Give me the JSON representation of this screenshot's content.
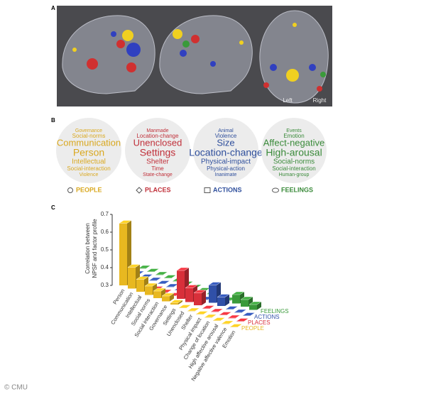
{
  "panel_labels": [
    "A",
    "B",
    "C"
  ],
  "panel_a": {
    "left": "Left",
    "right": "Right"
  },
  "panel_b": {
    "clouds": [
      {
        "name": "PEOPLE",
        "color": "#d9a820",
        "words": [
          "Governance",
          "Social-norms",
          "Communication",
          "Person",
          "Intellectual",
          "Social-interaction",
          "Violence"
        ]
      },
      {
        "name": "PLACES",
        "color": "#c0303a",
        "words": [
          "Manmade",
          "Location-change",
          "Unenclosed",
          "Settings",
          "Shelter",
          "Time",
          "State-change"
        ]
      },
      {
        "name": "ACTIONS",
        "color": "#2f4f9c",
        "words": [
          "Animal",
          "Violence",
          "Size",
          "Location-change",
          "Physical-impact",
          "Physical-action",
          "Inanimate"
        ]
      },
      {
        "name": "FEELINGS",
        "color": "#3a8a3a",
        "words": [
          "Events",
          "Emotion",
          "Affect-negative",
          "High-arousal",
          "Social-norms",
          "Social-interaction",
          "Human-group"
        ]
      }
    ]
  },
  "chart_data": {
    "type": "bar3d",
    "ylabel": [
      "Correlation between",
      "NPSF and factor profile"
    ],
    "ylim": [
      0.3,
      0.7
    ],
    "yticks": [
      0.3,
      0.4,
      0.5,
      0.6,
      0.7
    ],
    "categories": [
      "Person",
      "Communication",
      "Intellectual",
      "Social norms",
      "Social interaction",
      "Governance",
      "Settings",
      "Unenclosed",
      "Shelter",
      "Physical impact",
      "Change of location",
      "High affective arousal",
      "Negative affective valence",
      "Emotion"
    ],
    "series": [
      {
        "name": "PEOPLE",
        "color": "#e8b820",
        "values": [
          0.65,
          0.42,
          0.37,
          0.35,
          0.34,
          0.33,
          0.31,
          0.3,
          0.3,
          0.3,
          0.3,
          0.3,
          0.3,
          0.3
        ]
      },
      {
        "name": "PLACES",
        "color": "#d8303a",
        "values": [
          0.3,
          0.3,
          0.3,
          0.3,
          0.3,
          0.3,
          0.46,
          0.38,
          0.37,
          0.3,
          0.3,
          0.3,
          0.3,
          0.3
        ]
      },
      {
        "name": "ACTIONS",
        "color": "#3050a8",
        "values": [
          0.3,
          0.3,
          0.3,
          0.3,
          0.3,
          0.3,
          0.3,
          0.3,
          0.3,
          0.4,
          0.35,
          0.3,
          0.3,
          0.3
        ]
      },
      {
        "name": "FEELINGS",
        "color": "#3a9a3a",
        "values": [
          0.3,
          0.3,
          0.3,
          0.3,
          0.3,
          0.3,
          0.3,
          0.3,
          0.3,
          0.3,
          0.3,
          0.35,
          0.34,
          0.33
        ]
      }
    ]
  },
  "credit": "© CMU"
}
